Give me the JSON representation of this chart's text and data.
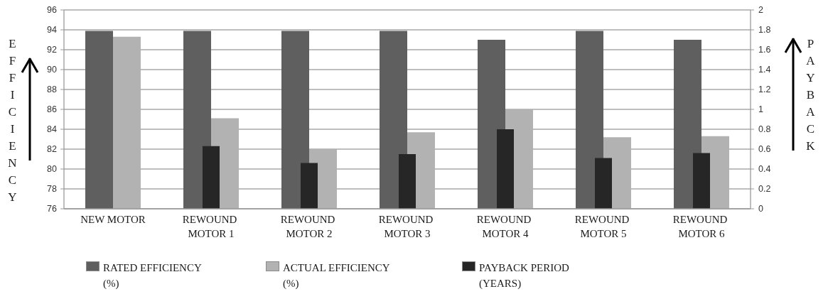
{
  "chart_data": {
    "type": "bar",
    "categories": [
      "NEW MOTOR",
      "REWOUND MOTOR 1",
      "REWOUND MOTOR 2",
      "REWOUND MOTOR 3",
      "REWOUND MOTOR 4",
      "REWOUND MOTOR 5",
      "REWOUND MOTOR 6"
    ],
    "series": [
      {
        "name": "RATED EFFICIENCY (%)",
        "color": "#5f5f5f",
        "values": [
          93.9,
          93.9,
          93.9,
          93.9,
          93.0,
          93.9,
          93.0
        ]
      },
      {
        "name": "ACTUAL EFFICIENCY (%)",
        "color": "#b2b2b2",
        "values": [
          93.3,
          85.1,
          82.0,
          83.7,
          86.0,
          83.2,
          83.3
        ]
      },
      {
        "name": "PAYBACK PERIOD (YEARS)",
        "color": "#262626",
        "axis": "y2",
        "values": [
          null,
          0.63,
          0.46,
          0.55,
          0.8,
          0.51,
          0.56
        ]
      }
    ],
    "ylabel": "EFFICIENCY",
    "y2label": "PAYBACK",
    "ylim": [
      76,
      96
    ],
    "yticks": [
      76,
      78,
      80,
      82,
      84,
      86,
      88,
      90,
      92,
      94,
      96
    ],
    "y2lim": [
      0,
      2
    ],
    "y2ticks": [
      0,
      0.2,
      0.4,
      0.6,
      0.8,
      1,
      1.2,
      1.4,
      1.6,
      1.8,
      2
    ],
    "grid": "y",
    "legend": "bottom"
  }
}
